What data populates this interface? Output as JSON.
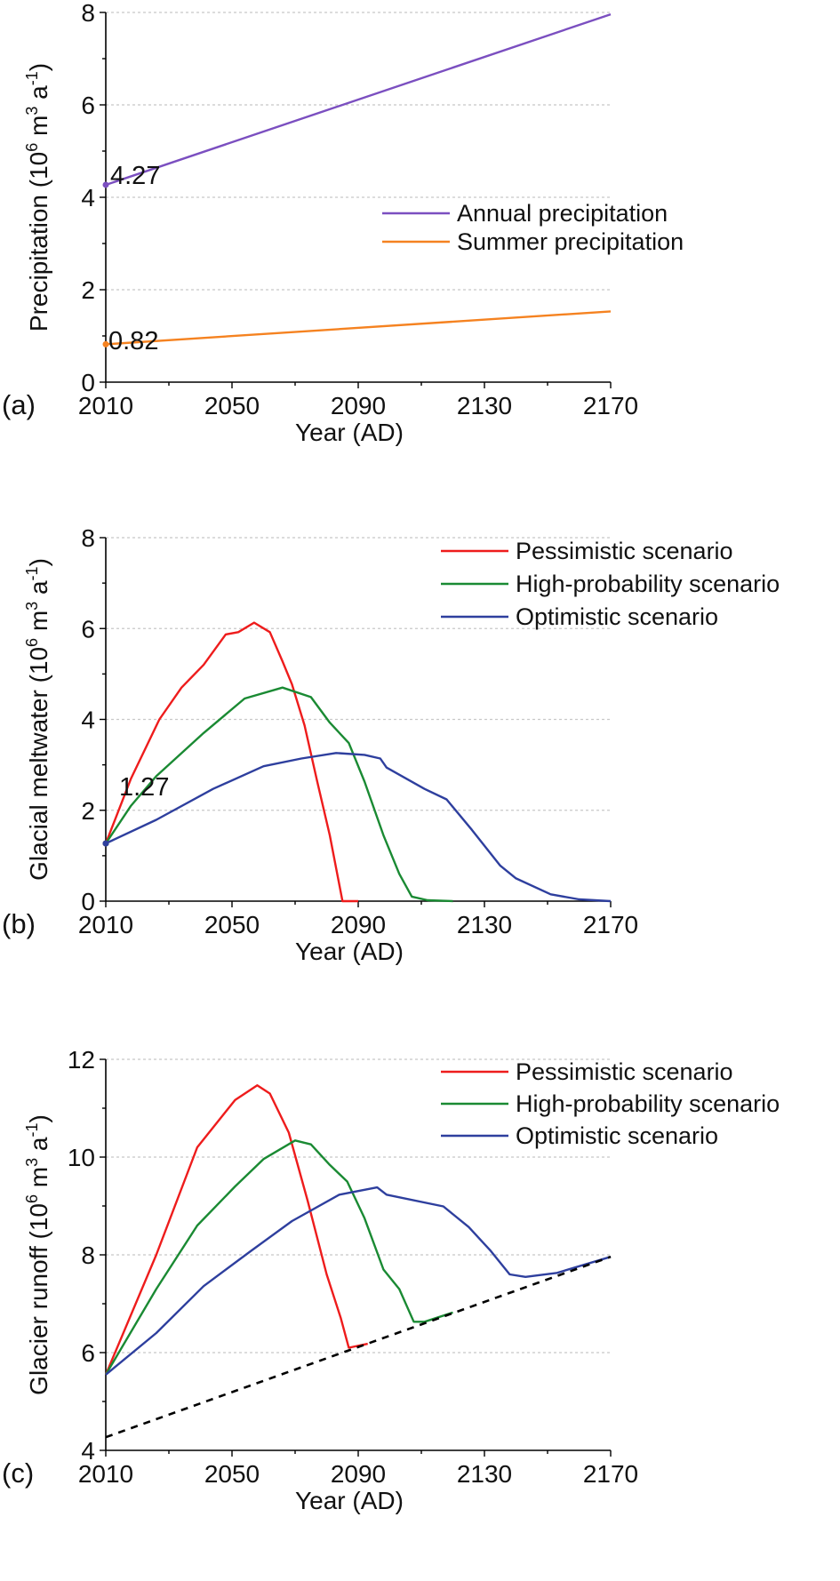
{
  "colors": {
    "annual": "#7b4fc0",
    "summer": "#f58220",
    "pessimistic": "#ee1c1c",
    "high_probability": "#1a8a33",
    "optimistic": "#2e3f9e",
    "baseline": "#000000",
    "grid": "#c8c8c8"
  },
  "chart_data": [
    {
      "panel_label": "(a)",
      "type": "line",
      "xlabel": "Year (AD)",
      "ylabel": "Precipitation (10^6 m^3 a^-1)",
      "ylabel_parts": {
        "pre": "Precipitation (10",
        "s1": "6",
        "mid": " m",
        "s2": "3",
        "mid2": " a",
        "s3": "-1",
        "post": ")"
      },
      "xlim": [
        2010,
        2170
      ],
      "ylim": [
        0,
        8
      ],
      "xticks": [
        2010,
        2050,
        2090,
        2130,
        2170
      ],
      "yticks": [
        0,
        2,
        4,
        6,
        8
      ],
      "grid": "horizontal dashed",
      "legend": "right-middle",
      "annotations": [
        {
          "text": "4.27",
          "series": "Annual precipitation"
        },
        {
          "text": "0.82",
          "series": "Summer precipitation"
        }
      ],
      "series": [
        {
          "name": "Annual precipitation",
          "color_key": "annual",
          "x": [
            2010,
            2170
          ],
          "y": [
            4.27,
            7.96
          ]
        },
        {
          "name": "Summer precipitation",
          "color_key": "summer",
          "x": [
            2010,
            2170
          ],
          "y": [
            0.82,
            1.53
          ]
        }
      ]
    },
    {
      "panel_label": "(b)",
      "type": "line",
      "xlabel": "Year (AD)",
      "ylabel": "Glacial meltwater (10^6 m^3 a^-1)",
      "ylabel_parts": {
        "pre": "Glacial meltwater (10",
        "s1": "6",
        "mid": " m",
        "s2": "3",
        "mid2": " a",
        "s3": "-1",
        "post": ")"
      },
      "xlim": [
        2010,
        2170
      ],
      "ylim": [
        0,
        8
      ],
      "xticks": [
        2010,
        2050,
        2090,
        2130,
        2170
      ],
      "yticks": [
        0,
        2,
        4,
        6,
        8
      ],
      "grid": "horizontal dashed",
      "legend": "top-right",
      "annotations": [
        {
          "text": "1.27",
          "series": "Pessimistic scenario"
        }
      ],
      "series": [
        {
          "name": "Pessimistic scenario",
          "color_key": "pessimistic",
          "x": [
            2010,
            2018,
            2027,
            2034,
            2041,
            2048,
            2052,
            2057,
            2062,
            2066,
            2069,
            2073,
            2077,
            2081,
            2085,
            2090
          ],
          "y": [
            1.27,
            2.7,
            4.0,
            4.7,
            5.2,
            5.87,
            5.92,
            6.13,
            5.92,
            5.28,
            4.77,
            3.87,
            2.63,
            1.45,
            0.0,
            0.0
          ]
        },
        {
          "name": "High-probability scenario",
          "color_key": "high_probability",
          "x": [
            2010,
            2018,
            2026,
            2041,
            2054,
            2066,
            2075,
            2081,
            2087,
            2092,
            2098,
            2103,
            2107,
            2112,
            2120
          ],
          "y": [
            1.27,
            2.1,
            2.75,
            3.7,
            4.46,
            4.7,
            4.49,
            3.93,
            3.48,
            2.63,
            1.45,
            0.6,
            0.1,
            0.02,
            0.0
          ]
        },
        {
          "name": "Optimistic scenario",
          "color_key": "optimistic",
          "x": [
            2010,
            2026,
            2044,
            2060,
            2072,
            2083,
            2092,
            2097,
            2099,
            2111,
            2118,
            2126,
            2135,
            2140,
            2151,
            2160,
            2170
          ],
          "y": [
            1.27,
            1.79,
            2.47,
            2.97,
            3.14,
            3.26,
            3.22,
            3.14,
            2.94,
            2.47,
            2.24,
            1.57,
            0.78,
            0.5,
            0.15,
            0.04,
            0.0
          ]
        }
      ]
    },
    {
      "panel_label": "(c)",
      "type": "line",
      "xlabel": "Year  (AD)",
      "ylabel": "Glacier runoff (10^6 m^3 a^-1)",
      "ylabel_parts": {
        "pre": "Glacier runoff (10",
        "s1": "6",
        "mid": " m",
        "s2": "3",
        "mid2": " a",
        "s3": "-1",
        "post": ")"
      },
      "xlim": [
        2010,
        2170
      ],
      "ylim": [
        4,
        12
      ],
      "xticks": [
        2010,
        2050,
        2090,
        2130,
        2170
      ],
      "yticks": [
        4,
        6,
        8,
        10,
        12
      ],
      "grid": "horizontal dashed",
      "legend": "top-right",
      "series": [
        {
          "name": "Pessimistic scenario",
          "color_key": "pessimistic",
          "x": [
            2010,
            2026,
            2039,
            2051,
            2058,
            2062,
            2068,
            2074,
            2080,
            2084.5,
            2087,
            2093
          ],
          "y": [
            5.55,
            8.0,
            10.2,
            11.17,
            11.47,
            11.3,
            10.5,
            9.1,
            7.6,
            6.7,
            6.1,
            6.18
          ]
        },
        {
          "name": "High-probability scenario",
          "color_key": "high_probability",
          "x": [
            2010,
            2026,
            2039,
            2051,
            2060,
            2070,
            2075,
            2081,
            2086.5,
            2092,
            2098,
            2103,
            2107.6,
            2111,
            2120
          ],
          "y": [
            5.55,
            7.3,
            8.6,
            9.4,
            9.96,
            10.34,
            10.26,
            9.84,
            9.5,
            8.75,
            7.7,
            7.3,
            6.63,
            6.63,
            6.82
          ]
        },
        {
          "name": "Optimistic scenario",
          "color_key": "optimistic",
          "x": [
            2010,
            2026,
            2041,
            2056,
            2069,
            2084,
            2096,
            2099,
            2117,
            2125,
            2132,
            2138,
            2143,
            2153,
            2170
          ],
          "y": [
            5.55,
            6.4,
            7.36,
            8.08,
            8.69,
            9.23,
            9.38,
            9.23,
            8.99,
            8.57,
            8.08,
            7.6,
            7.55,
            7.63,
            7.96
          ]
        },
        {
          "color_key": "baseline",
          "dashed": true,
          "x": [
            2010,
            2170
          ],
          "y": [
            4.27,
            7.96
          ]
        }
      ]
    }
  ]
}
